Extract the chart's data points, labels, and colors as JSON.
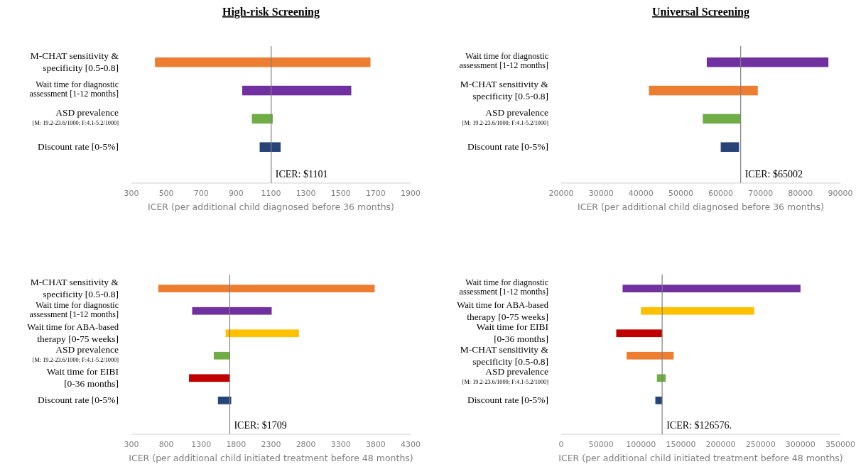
{
  "chart_data": [
    {
      "type": "bar",
      "orientation": "horizontal",
      "title": "High-risk Screening",
      "xlabel": "ICER (per additional child diagnosed before 36 months)",
      "categories": [
        "M-CHAT sensitivity &\nspecificity [0.5-0.8]",
        "Wait time for diagnostic\nassessment [1-12 months]",
        "ASD prevalence\n[M: 19.2-23.6/1000; F:4.1-5.2/1000]",
        "Discount rate [0-5%]"
      ],
      "base": [
        435,
        935,
        990,
        1035
      ],
      "values": [
        1235,
        625,
        120,
        120
      ],
      "colors": [
        "#ed7d31",
        "#7030a0",
        "#70ad47",
        "#264478"
      ],
      "xlim": [
        300,
        1900
      ],
      "xticks": [
        300,
        500,
        700,
        900,
        1100,
        1300,
        1500,
        1700,
        1900
      ],
      "ref_lines": [
        {
          "axis": "x",
          "value": 1101,
          "label": "ICER: $1101",
          "color": "#808080"
        }
      ]
    },
    {
      "type": "bar",
      "orientation": "horizontal",
      "title": "Universal Screening",
      "xlabel": "ICER (per additional child diagnosed before 36 months)",
      "categories": [
        "Wait time for diagnostic\nassessment [1-12 months]",
        "M-CHAT sensitivity &\nspecificity [0.5-0.8]",
        "ASD prevalence\n[M: 19.2-23.6/1000; F:4.1-5.2/1000]",
        "Discount rate [0-5%]"
      ],
      "base": [
        56500,
        42000,
        55500,
        60000
      ],
      "values": [
        30500,
        27300,
        9500,
        4600
      ],
      "colors": [
        "#7030a0",
        "#ed7d31",
        "#70ad47",
        "#264478"
      ],
      "xlim": [
        20000,
        90000
      ],
      "xticks": [
        20000,
        30000,
        40000,
        50000,
        60000,
        70000,
        80000,
        90000
      ],
      "ref_lines": [
        {
          "axis": "x",
          "value": 65002,
          "label": "ICER: $65002",
          "color": "#808080"
        }
      ]
    },
    {
      "type": "bar",
      "orientation": "horizontal",
      "xlabel": "ICER (per additional child initiated treatment before 48 months)",
      "categories": [
        "M-CHAT sensitivity &\nspecificity [0.5-0.8]",
        "Wait time for diagnostic\nassessment [1-12 months]",
        "Wait time for ABA-based\ntherapy [0-75 weeks]",
        "ASD prevalence\n[M: 19.2-23.6/1000; F:4.1-5.2/1000]",
        "Wait time for EIBI\n[0-36 months]",
        "Discount rate [0-5%]"
      ],
      "base": [
        685,
        1170,
        1650,
        1480,
        1125,
        1540
      ],
      "values": [
        3100,
        1140,
        1050,
        230,
        585,
        190
      ],
      "colors": [
        "#ed7d31",
        "#7030a0",
        "#ffc000",
        "#70ad47",
        "#c00000",
        "#264478"
      ],
      "xlim": [
        300,
        4300
      ],
      "xticks": [
        300,
        800,
        1300,
        1800,
        2300,
        2800,
        3300,
        3800,
        4300
      ],
      "ref_lines": [
        {
          "axis": "x",
          "value": 1709,
          "label": "ICER: $1709",
          "color": "#808080"
        }
      ]
    },
    {
      "type": "bar",
      "orientation": "horizontal",
      "xlabel": "ICER (per additional child initiated treatment before 48 months)",
      "categories": [
        "Wait time for diagnostic\nassessment [1-12 months]",
        "Wait time for ABA-based\ntherapy [0-75 weeks]",
        "Wait time for EIBI\n[0-36 months]",
        "M-CHAT sensitivity &\nspecificity [0.5-0.8]",
        "ASD prevalence\n[M: 19.2-23.6/1000; F:4.1-5.2/1000]",
        "Discount rate [0-5%]"
      ],
      "base": [
        77000,
        100000,
        69000,
        82000,
        120000,
        118000
      ],
      "values": [
        223000,
        142000,
        57500,
        59000,
        11000,
        8500
      ],
      "colors": [
        "#7030a0",
        "#ffc000",
        "#c00000",
        "#ed7d31",
        "#70ad47",
        "#264478"
      ],
      "xlim": [
        0,
        350000
      ],
      "xticks": [
        0,
        50000,
        100000,
        150000,
        200000,
        250000,
        300000,
        350000
      ],
      "ref_lines": [
        {
          "axis": "x",
          "value": 126576,
          "label": "ICER: $126576.",
          "color": "#808080"
        }
      ]
    }
  ]
}
